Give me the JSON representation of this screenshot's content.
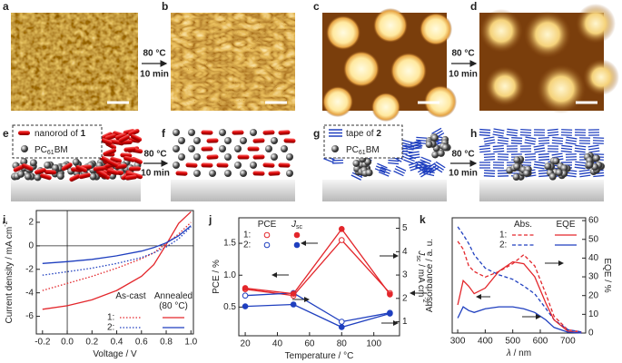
{
  "panel_labels": [
    "a",
    "b",
    "c",
    "d",
    "e",
    "f",
    "g",
    "h",
    "i",
    "j",
    "k"
  ],
  "arrows": [
    {
      "top": "80 °C",
      "bottom": "10 min"
    },
    {
      "top": "80 °C",
      "bottom": "10 min"
    },
    {
      "top": "80 °C",
      "bottom": "10 min"
    },
    {
      "top": "80 °C",
      "bottom": "10 min"
    }
  ],
  "legend_e": [
    [
      {
        "text": "nanorod of "
      },
      {
        "text": "1",
        "bold": true
      }
    ],
    [
      {
        "text": "PC"
      },
      {
        "text": "61",
        "sub": true
      },
      {
        "text": "BM"
      }
    ]
  ],
  "legend_g": [
    [
      {
        "text": "tape of "
      },
      {
        "text": "2",
        "bold": true
      }
    ],
    [
      {
        "text": "PC"
      },
      {
        "text": "61",
        "sub": true
      },
      {
        "text": "BM"
      }
    ]
  ],
  "chart_data": [
    {
      "type": "line",
      "x_label": [
        {
          "text": "Voltage / V"
        }
      ],
      "y_label": [
        {
          "text": "Current density / mA cm"
        },
        {
          "text": "-2",
          "sup": true
        }
      ],
      "x": [
        -0.2,
        0,
        0.2,
        0.4,
        0.6,
        0.7,
        0.8,
        0.9,
        1.0
      ],
      "xlim": [
        -0.25,
        1.02
      ],
      "xticks": [
        -0.2,
        {
          "value": 0,
          "label": "0.0"
        },
        0.2,
        0.4,
        0.6,
        0.8,
        {
          "value": 1,
          "label": "1.0"
        }
      ],
      "ylim": [
        -7.5,
        3
      ],
      "yticks": [
        -6,
        -4,
        -2,
        0,
        2
      ],
      "zero_lines": true,
      "legend_position": "lower right",
      "legend": {
        "columns": [
          [
            {
              "text": "As-cast"
            }
          ],
          [
            {
              "text": "Annealed"
            },
            {
              "text": "(80 °C)",
              "br": true
            }
          ]
        ],
        "rows": [
          "1:",
          "2:"
        ]
      },
      "series": [
        {
          "color": "#e3262b",
          "dash": "dotted",
          "values": [
            -3.8,
            -3.2,
            -2.6,
            -1.9,
            -1.1,
            -0.6,
            0.2,
            1.0,
            2.0
          ]
        },
        {
          "color": "#1f3fbf",
          "dash": "dotted",
          "values": [
            -2.5,
            -2.2,
            -1.9,
            -1.5,
            -1.0,
            -0.6,
            -0.1,
            0.6,
            1.6
          ]
        },
        {
          "color": "#e3262b",
          "dash": "solid",
          "values": [
            -5.4,
            -5.1,
            -4.6,
            -3.8,
            -2.6,
            -1.6,
            0.1,
            1.9,
            2.9
          ]
        },
        {
          "color": "#1f3fbf",
          "dash": "solid",
          "values": [
            -1.5,
            -1.35,
            -1.15,
            -0.85,
            -0.45,
            -0.15,
            0.25,
            0.85,
            1.7
          ]
        }
      ]
    },
    {
      "type": "line",
      "x_label": [
        {
          "text": "Temperature / °C"
        }
      ],
      "y_label": [
        {
          "text": "PCE / %"
        }
      ],
      "y2_label": [
        {
          "text": "J",
          "italic": true
        },
        {
          "text": "sc",
          "sub": true
        },
        {
          "text": " / mA cm"
        },
        {
          "text": "-2",
          "sup": true
        }
      ],
      "x": [
        20,
        50,
        80,
        110
      ],
      "xlim": [
        16,
        116
      ],
      "xticks": [
        20,
        40,
        60,
        80,
        100
      ],
      "ylim": [
        0.05,
        1.9
      ],
      "yticks": [
        0.5,
        {
          "value": 1,
          "label": "1.0"
        },
        1.5
      ],
      "y2lim": [
        0.4,
        5.45
      ],
      "y2ticks": [
        1,
        2,
        3,
        4,
        5
      ],
      "legend_position": "upper left",
      "legend": {
        "columns": [
          [
            {
              "text": "PCE"
            }
          ],
          [
            {
              "text": "J",
              "italic": true
            },
            {
              "text": "sc",
              "sub": true
            }
          ]
        ],
        "rows": [
          "1:",
          "2:"
        ]
      },
      "series": [
        {
          "color": "#e3262b",
          "dash": "solid",
          "marker": "open",
          "values": [
            0.78,
            0.68,
            1.55,
            0.72
          ]
        },
        {
          "color": "#1f3fbf",
          "dash": "solid",
          "marker": "open",
          "values": [
            0.68,
            0.72,
            0.27,
            0.41
          ]
        },
        {
          "color": "#e3262b",
          "dash": "solid",
          "marker": "filled",
          "axis": "y2",
          "values": [
            2.44,
            2.2,
            4.97,
            2.17
          ]
        },
        {
          "color": "#1f3fbf",
          "dash": "solid",
          "marker": "filled",
          "axis": "y2",
          "values": [
            1.66,
            1.74,
            0.77,
            1.35
          ]
        }
      ]
    },
    {
      "type": "line",
      "x_label": [
        {
          "text": "λ",
          "italic": true
        },
        {
          "text": " / nm"
        }
      ],
      "y_label": [
        {
          "text": "Absorbance / a. u."
        }
      ],
      "y2_label": [
        {
          "text": "EQE / %"
        }
      ],
      "x": [
        300,
        320,
        340,
        360,
        400,
        450,
        500,
        540,
        580,
        620,
        650,
        700,
        750
      ],
      "xlim": [
        280,
        765
      ],
      "xticks": [
        300,
        400,
        500,
        600,
        700
      ],
      "ylim": [
        0,
        1.03
      ],
      "y2lim": [
        0,
        61.5
      ],
      "y2ticks": [
        0,
        10,
        20,
        30,
        40,
        50,
        60
      ],
      "legend_position": "upper right",
      "legend": {
        "columns": [
          [
            {
              "text": "Abs."
            }
          ],
          [
            {
              "text": "EQE"
            }
          ]
        ],
        "rows": [
          "1:",
          "2:"
        ]
      },
      "series": [
        {
          "color": "#e3262b",
          "dash": "dashed",
          "values": [
            0.82,
            0.75,
            0.6,
            0.55,
            0.5,
            0.55,
            0.62,
            0.7,
            0.6,
            0.35,
            0.15,
            0.03,
            0.01
          ]
        },
        {
          "color": "#1f3fbf",
          "dash": "dashed",
          "values": [
            0.95,
            0.88,
            0.8,
            0.7,
            0.58,
            0.52,
            0.48,
            0.42,
            0.35,
            0.22,
            0.12,
            0.03,
            0.01
          ]
        },
        {
          "color": "#e3262b",
          "dash": "solid",
          "axis": "y2",
          "values": [
            15,
            28,
            25,
            21,
            24,
            33,
            38,
            37,
            30,
            16,
            7,
            1,
            0
          ]
        },
        {
          "color": "#1f3fbf",
          "dash": "solid",
          "axis": "y2",
          "values": [
            8,
            14,
            12,
            11,
            13,
            14,
            14,
            13,
            11,
            7,
            3,
            0.5,
            0
          ]
        }
      ]
    }
  ]
}
